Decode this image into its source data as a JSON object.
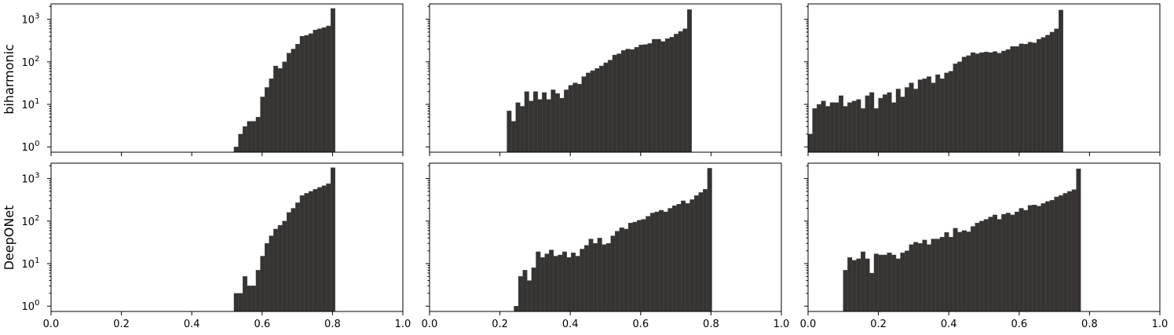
{
  "rows": [
    "biharmonic",
    "DeepONet"
  ],
  "chart_data": [
    {
      "type": "bar",
      "row": "biharmonic",
      "yscale": "log",
      "xlim": [
        0,
        1
      ],
      "ylim": [
        0.75,
        2300
      ],
      "x_start": 0.52,
      "bin_width": 0.0125,
      "values": [
        1,
        2,
        3,
        4,
        4,
        5,
        15,
        25,
        40,
        80,
        70,
        100,
        160,
        200,
        260,
        400,
        420,
        460,
        560,
        600,
        640,
        700,
        1800
      ],
      "xticks": [
        "0.0",
        "0.2",
        "0.4",
        "0.6",
        "0.8",
        "1.0"
      ],
      "yticks": [
        "10^0",
        "10^1",
        "10^2",
        "10^3"
      ]
    },
    {
      "type": "bar",
      "row": "biharmonic",
      "yscale": "log",
      "xlim": [
        0,
        1
      ],
      "ylim": [
        0.75,
        2300
      ],
      "x_start": 0.22,
      "bin_width": 0.0125,
      "values": [
        7,
        4,
        11,
        9,
        20,
        12,
        20,
        13,
        19,
        13,
        22,
        18,
        14,
        22,
        28,
        32,
        30,
        45,
        55,
        62,
        70,
        80,
        95,
        110,
        145,
        155,
        185,
        200,
        195,
        220,
        250,
        255,
        270,
        340,
        340,
        300,
        350,
        380,
        450,
        520,
        600,
        1700
      ],
      "xticks": [
        "0.0",
        "0.2",
        "0.4",
        "0.6",
        "0.8",
        "1.0"
      ],
      "yticks": [
        "10^0",
        "10^1",
        "10^2",
        "10^3"
      ]
    },
    {
      "type": "bar",
      "row": "biharmonic",
      "yscale": "log",
      "xlim": [
        0,
        1
      ],
      "ylim": [
        0.75,
        2300
      ],
      "x_start": 0.0,
      "bin_width": 0.0125,
      "values": [
        2,
        8,
        10,
        12,
        9,
        11,
        11,
        16,
        9,
        11,
        12,
        13,
        8,
        16,
        19,
        8,
        14,
        17,
        19,
        11,
        23,
        15,
        25,
        32,
        23,
        38,
        40,
        45,
        32,
        50,
        40,
        55,
        60,
        90,
        100,
        130,
        140,
        165,
        155,
        165,
        170,
        165,
        175,
        160,
        180,
        195,
        230,
        230,
        265,
        260,
        290,
        280,
        340,
        375,
        425,
        500,
        600,
        1650
      ],
      "xticks": [
        "0.0",
        "0.2",
        "0.4",
        "0.6",
        "0.8",
        "1.0"
      ],
      "yticks": [
        "10^0",
        "10^1",
        "10^2",
        "10^3"
      ]
    },
    {
      "type": "bar",
      "row": "DeepONet",
      "yscale": "log",
      "xlim": [
        0,
        1
      ],
      "ylim": [
        0.75,
        2300
      ],
      "x_start": 0.52,
      "bin_width": 0.0125,
      "values": [
        2,
        2,
        5,
        3,
        3,
        7,
        15,
        30,
        45,
        65,
        80,
        100,
        160,
        200,
        270,
        400,
        450,
        500,
        560,
        620,
        680,
        760,
        1800
      ],
      "xticks": [
        "0.0",
        "0.2",
        "0.4",
        "0.6",
        "0.8",
        "1.0"
      ],
      "yticks": [
        "10^0",
        "10^1",
        "10^2",
        "10^3"
      ]
    },
    {
      "type": "bar",
      "row": "DeepONet",
      "yscale": "log",
      "xlim": [
        0,
        1
      ],
      "ylim": [
        0.75,
        2300
      ],
      "x_start": 0.24,
      "bin_width": 0.0125,
      "values": [
        1,
        5,
        7,
        4,
        8,
        19,
        14,
        17,
        21,
        15,
        16,
        19,
        14,
        18,
        15,
        22,
        27,
        38,
        30,
        40,
        28,
        30,
        45,
        58,
        70,
        65,
        90,
        95,
        105,
        110,
        130,
        155,
        165,
        180,
        165,
        200,
        230,
        250,
        300,
        260,
        320,
        400,
        470,
        560,
        1750
      ],
      "xticks": [
        "0.0",
        "0.2",
        "0.4",
        "0.6",
        "0.8",
        "1.0"
      ],
      "yticks": [
        "10^0",
        "10^1",
        "10^2",
        "10^3"
      ]
    },
    {
      "type": "bar",
      "row": "DeepONet",
      "yscale": "log",
      "xlim": [
        0,
        1
      ],
      "ylim": [
        0.75,
        2300
      ],
      "x_start": 0.1,
      "bin_width": 0.0125,
      "values": [
        7,
        14,
        12,
        13,
        19,
        13,
        6,
        17,
        16,
        16,
        18,
        16,
        13,
        18,
        20,
        28,
        32,
        30,
        36,
        28,
        38,
        38,
        42,
        54,
        42,
        68,
        55,
        60,
        56,
        75,
        90,
        100,
        110,
        125,
        140,
        110,
        145,
        155,
        140,
        165,
        200,
        180,
        235,
        240,
        225,
        260,
        290,
        310,
        370,
        400,
        450,
        500,
        550,
        1700
      ],
      "xticks": [
        "0.0",
        "0.2",
        "0.4",
        "0.6",
        "0.8",
        "1.0"
      ],
      "yticks": [
        "10^0",
        "10^1",
        "10^2",
        "10^3"
      ]
    }
  ]
}
